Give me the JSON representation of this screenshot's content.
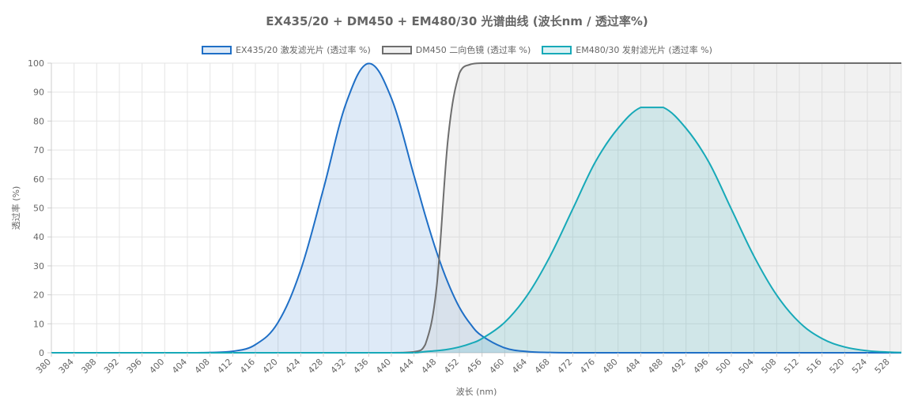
{
  "chart_data": {
    "type": "line",
    "title": "EX435/20 + DM450 + EM480/30 光谱曲线 (波长nm / 透过率%)",
    "xlabel": "波长 (nm)",
    "ylabel": "透过率 (%)",
    "xlim": [
      380,
      530
    ],
    "ylim": [
      0,
      100
    ],
    "x_ticks": [
      "380",
      "384",
      "388",
      "392",
      "396",
      "400",
      "404",
      "408",
      "412",
      "416",
      "420",
      "424",
      "428",
      "432",
      "436",
      "440",
      "444",
      "448",
      "452",
      "456",
      "460",
      "464",
      "468",
      "472",
      "476",
      "480",
      "484",
      "488",
      "492",
      "496",
      "500",
      "504",
      "508",
      "512",
      "516",
      "520",
      "524",
      "528"
    ],
    "y_ticks": [
      "0",
      "10",
      "20",
      "30",
      "40",
      "50",
      "60",
      "70",
      "80",
      "90",
      "100"
    ],
    "grid": true,
    "legend_position": "top-center",
    "x": [
      380,
      384,
      388,
      392,
      396,
      400,
      404,
      408,
      412,
      416,
      420,
      424,
      428,
      432,
      436,
      440,
      444,
      446,
      448,
      450,
      452,
      454,
      456,
      460,
      464,
      468,
      472,
      476,
      480,
      484,
      488,
      492,
      496,
      500,
      504,
      508,
      512,
      516,
      520,
      524,
      528,
      530
    ],
    "series": [
      {
        "name": "EX435/20 激发滤光片 (透过率 %)",
        "color": "#1f6fc6",
        "fill": "rgba(31,111,198,0.15)",
        "values": [
          0,
          0,
          0,
          0,
          0,
          0,
          0,
          0.1,
          0.5,
          2.8,
          10.5,
          28.6,
          56.5,
          86.1,
          99.9,
          87.9,
          61.1,
          47.3,
          34.7,
          24.1,
          15.7,
          9.8,
          5.8,
          1.7,
          0.4,
          0.1,
          0,
          0,
          0,
          0,
          0,
          0,
          0,
          0,
          0,
          0,
          0,
          0,
          0,
          0,
          0,
          0
        ]
      },
      {
        "name": "DM450 二向色镜 (透过率 %)",
        "color": "#6e6e6e",
        "fill": "rgba(200,200,200,0.25)",
        "values": [
          0,
          0,
          0,
          0,
          0,
          0,
          0,
          0,
          0,
          0,
          0,
          0,
          0,
          0,
          0,
          0,
          0.3,
          2.9,
          23,
          74,
          96.5,
          99.6,
          100,
          100,
          100,
          100,
          100,
          100,
          100,
          100,
          100,
          100,
          100,
          100,
          100,
          100,
          100,
          100,
          100,
          100,
          100,
          100
        ]
      },
      {
        "name": "EM480/30 发射滤光片 (透过率 %)",
        "color": "#17a9b8",
        "fill": "rgba(23,169,184,0.15)",
        "values": [
          0,
          0,
          0,
          0,
          0,
          0,
          0,
          0,
          0,
          0,
          0,
          0,
          0,
          0,
          0,
          0,
          0,
          0.4,
          0.7,
          1.2,
          2.0,
          3.2,
          4.9,
          10.5,
          19.9,
          33.3,
          49.6,
          65.9,
          77.5,
          84.7,
          84.7,
          77.5,
          65.9,
          49.6,
          33.3,
          19.9,
          10.5,
          4.9,
          2.0,
          0.7,
          0.2,
          0.1
        ]
      }
    ]
  }
}
